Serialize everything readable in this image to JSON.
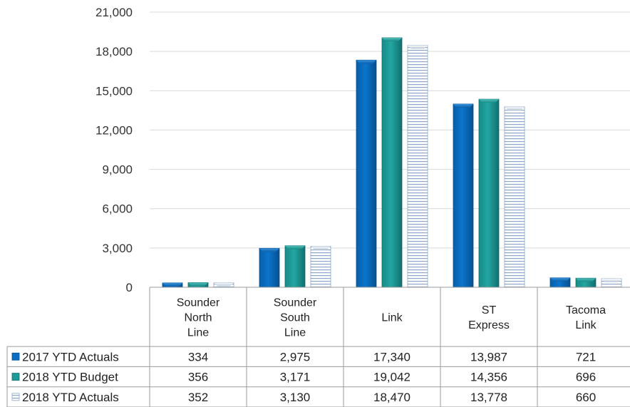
{
  "chart_data": {
    "type": "bar",
    "categories": [
      [
        "Sounder",
        "North",
        "Line"
      ],
      [
        "Sounder",
        "South",
        "Line"
      ],
      [
        "Link"
      ],
      [
        "ST",
        "Express"
      ],
      [
        "Tacoma",
        "Link"
      ]
    ],
    "series": [
      {
        "name": "2017 YTD Actuals",
        "values": [
          334,
          2975,
          17340,
          13987,
          721
        ],
        "value_labels": [
          "334",
          "2,975",
          "17,340",
          "13,987",
          "721"
        ],
        "color": "#0a6fc2"
      },
      {
        "name": "2018 YTD Budget",
        "values": [
          356,
          3171,
          19042,
          14356,
          696
        ],
        "value_labels": [
          "356",
          "3,171",
          "19,042",
          "14,356",
          "696"
        ],
        "color": "#1e9b98"
      },
      {
        "name": "2018 YTD Actuals",
        "values": [
          352,
          3130,
          18470,
          13778,
          660
        ],
        "value_labels": [
          "352",
          "3,130",
          "18,470",
          "13,778",
          "660"
        ],
        "color": "#e8eef6",
        "pattern": "horizontal-stripes"
      }
    ],
    "y_ticks": [
      "0",
      "3,000",
      "6,000",
      "9,000",
      "12,000",
      "15,000",
      "18,000",
      "21,000"
    ],
    "ylim": [
      0,
      21000
    ],
    "grid": true,
    "legend": "data-table"
  }
}
